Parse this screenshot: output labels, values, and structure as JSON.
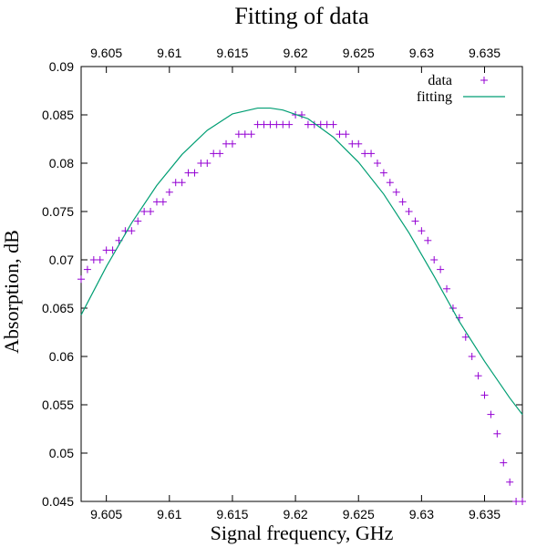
{
  "chart_data": {
    "type": "scatter",
    "title": "Fitting of data",
    "xlabel": "Signal frequency, GHz",
    "ylabel": "Absorption, dB",
    "xlim": [
      9.603,
      9.638
    ],
    "ylim": [
      0.045,
      0.09
    ],
    "x_ticks": [
      9.605,
      9.61,
      9.615,
      9.62,
      9.625,
      9.63,
      9.635
    ],
    "x_tick_labels": [
      "9.605",
      "9.61",
      "9.615",
      "9.62",
      "9.625",
      "9.63",
      "9.635"
    ],
    "x2_tick_labels": [
      "9.605",
      "9.61",
      "9.615",
      "9.62",
      "9.625",
      "9.63",
      "9.635"
    ],
    "y_ticks": [
      0.045,
      0.05,
      0.055,
      0.06,
      0.065,
      0.07,
      0.075,
      0.08,
      0.085,
      0.09
    ],
    "y_tick_labels": [
      "0.045",
      "0.05",
      "0.055",
      "0.06",
      "0.065",
      "0.07",
      "0.075",
      "0.08",
      "0.085",
      "0.09"
    ],
    "grid": false,
    "legend_position": "top-right",
    "series": [
      {
        "name": "data",
        "kind": "points",
        "marker": "plus",
        "color": "#9400d3",
        "x": [
          9.603,
          9.6035,
          9.604,
          9.6045,
          9.605,
          9.6055,
          9.606,
          9.6065,
          9.607,
          9.6075,
          9.608,
          9.6085,
          9.609,
          9.6095,
          9.61,
          9.6105,
          9.611,
          9.6115,
          9.612,
          9.6125,
          9.613,
          9.6135,
          9.614,
          9.6145,
          9.615,
          9.6155,
          9.616,
          9.6165,
          9.617,
          9.6175,
          9.618,
          9.6185,
          9.619,
          9.6195,
          9.62,
          9.6205,
          9.621,
          9.6215,
          9.622,
          9.6225,
          9.623,
          9.6235,
          9.624,
          9.6245,
          9.625,
          9.6255,
          9.626,
          9.6265,
          9.627,
          9.6275,
          9.628,
          9.6285,
          9.629,
          9.6295,
          9.63,
          9.6305,
          9.631,
          9.6315,
          9.632,
          9.6325,
          9.633,
          9.6335,
          9.634,
          9.6345,
          9.635,
          9.6355,
          9.636,
          9.6365,
          9.637,
          9.6375,
          9.638
        ],
        "y": [
          0.068,
          0.069,
          0.07,
          0.07,
          0.071,
          0.071,
          0.072,
          0.073,
          0.073,
          0.074,
          0.075,
          0.075,
          0.076,
          0.076,
          0.077,
          0.078,
          0.078,
          0.079,
          0.079,
          0.08,
          0.08,
          0.081,
          0.081,
          0.082,
          0.082,
          0.083,
          0.083,
          0.083,
          0.084,
          0.084,
          0.084,
          0.084,
          0.084,
          0.084,
          0.085,
          0.085,
          0.084,
          0.084,
          0.084,
          0.084,
          0.084,
          0.083,
          0.083,
          0.082,
          0.082,
          0.081,
          0.081,
          0.08,
          0.079,
          0.078,
          0.077,
          0.076,
          0.075,
          0.074,
          0.073,
          0.072,
          0.07,
          0.069,
          0.067,
          0.065,
          0.064,
          0.062,
          0.06,
          0.058,
          0.056,
          0.054,
          0.052,
          0.049,
          0.047,
          0.045,
          0.045
        ]
      },
      {
        "name": "fitting",
        "kind": "line",
        "color": "#009e73",
        "x": [
          9.603,
          9.605,
          9.607,
          9.609,
          9.611,
          9.613,
          9.615,
          9.617,
          9.618,
          9.619,
          9.621,
          9.623,
          9.625,
          9.627,
          9.629,
          9.631,
          9.633,
          9.635,
          9.637,
          9.638
        ],
        "y": [
          0.0643,
          0.0693,
          0.0738,
          0.0777,
          0.0809,
          0.0834,
          0.0851,
          0.0857,
          0.0857,
          0.0855,
          0.0846,
          0.0827,
          0.0801,
          0.0768,
          0.0728,
          0.0683,
          0.0636,
          0.0595,
          0.0557,
          0.054
        ]
      }
    ]
  }
}
